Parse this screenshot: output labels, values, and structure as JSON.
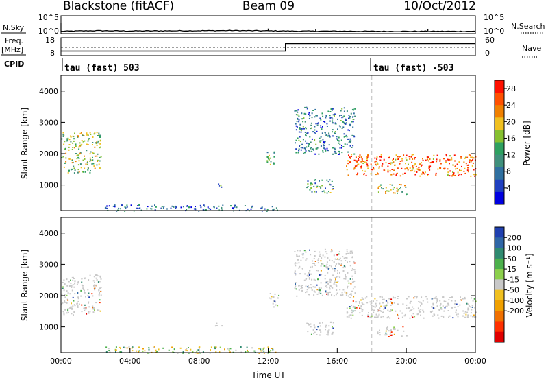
{
  "header": {
    "station": "Blackstone (fitACF)",
    "beam": "Beam 09",
    "date": "10/Oct/2012"
  },
  "side_labels": {
    "nsky": "N.Sky",
    "freq": "Freq.",
    "freq_unit": "[MHz]",
    "cpid": "CPID",
    "nsearch": "N.Search",
    "nave": "Nave"
  },
  "cpid_labels": [
    "tau (fast) 503",
    "tau (fast) -503"
  ],
  "colors": {
    "axis": "#000000",
    "divider": "#bbbbbb",
    "ground_scatter": "#c8c8c8"
  },
  "chart_data": [
    {
      "type": "line",
      "name": "noise",
      "left_ticks": [
        "10^5",
        "10^0"
      ],
      "right_ticks": [
        "10^5",
        "10^0"
      ],
      "x": [
        "00:00",
        "02:00",
        "04:00",
        "06:00",
        "08:00",
        "10:00",
        "12:00",
        "14:00",
        "16:00",
        "18:00",
        "20:00",
        "22:00",
        "24:00"
      ],
      "sky_log10": [
        0.3,
        0.5,
        0.4,
        0.45,
        0.5,
        0.55,
        0.45,
        0.35,
        0.35,
        0.3,
        0.3,
        0.3,
        0.3
      ],
      "spikes": [
        {
          "t": "12:00",
          "log10": 1.2
        },
        {
          "t": "14:45",
          "log10": 0.9
        },
        {
          "t": "21:15",
          "log10": 1.0
        }
      ]
    },
    {
      "type": "line",
      "name": "frequency",
      "left_ticks": [
        "18",
        "8"
      ],
      "right_ticks": [
        "60",
        "0"
      ],
      "freq_series": [
        {
          "t": "00:00",
          "MHz": 10.5
        },
        {
          "t": "13:00",
          "MHz": 10.5
        },
        {
          "t": "13:00",
          "MHz": 15.5
        },
        {
          "t": "24:00",
          "MHz": 15.5
        }
      ],
      "nave_series": [
        {
          "t": "00:00",
          "value": 30
        },
        {
          "t": "24:00",
          "value": 30
        }
      ]
    },
    {
      "type": "heatmap",
      "name": "power",
      "xlabel": "",
      "ylabel": "Slant Range [km]",
      "ylim": [
        180,
        4500
      ],
      "yticks": [
        1000,
        2000,
        3000,
        4000
      ],
      "colorbar": {
        "label": "Power [dB]",
        "ticks": [
          4,
          8,
          12,
          16,
          20,
          24,
          28
        ],
        "range": [
          0,
          30
        ],
        "colors": [
          "#0000e0",
          "#2040c0",
          "#3070a0",
          "#40907c",
          "#2ea060",
          "#86c030",
          "#f0c020",
          "#f08000",
          "#ff5000",
          "#ff1000"
        ]
      },
      "regions": [
        {
          "x0": 0.0,
          "x1": 2.3,
          "r0": 1400,
          "r1": 2700,
          "level": 0.55
        },
        {
          "x0": 8.9,
          "x1": 9.3,
          "r0": 950,
          "r1": 1150,
          "level": 0.35
        },
        {
          "x0": 11.9,
          "x1": 12.6,
          "r0": 1650,
          "r1": 2100,
          "level": 0.45
        },
        {
          "x0": 13.5,
          "x1": 17.0,
          "r0": 2000,
          "r1": 3500,
          "level": 0.3
        },
        {
          "x0": 14.2,
          "x1": 15.8,
          "r0": 750,
          "r1": 1200,
          "level": 0.4
        },
        {
          "x0": 16.5,
          "x1": 24.0,
          "r0": 1300,
          "r1": 2000,
          "level": 0.8
        },
        {
          "x0": 18.3,
          "x1": 20.0,
          "r0": 700,
          "r1": 1050,
          "level": 0.55
        },
        {
          "x0": 2.5,
          "x1": 12.5,
          "r0": 180,
          "r1": 380,
          "level": 0.25
        }
      ]
    },
    {
      "type": "heatmap",
      "name": "velocity",
      "xlabel": "Time UT",
      "ylabel": "Slant Range [km]",
      "ylim": [
        180,
        4500
      ],
      "yticks": [
        1000,
        2000,
        3000,
        4000
      ],
      "xticks": [
        "00:00",
        "04:00",
        "08:00",
        "12:00",
        "16:00",
        "20:00",
        "00:00"
      ],
      "colorbar": {
        "label": "Velocity [m s⁻¹]",
        "ticks": [
          "200",
          "100",
          "50",
          "15",
          "-15",
          "-50",
          "-100",
          "-200"
        ],
        "colors": [
          "#2040b0",
          "#2f66a6",
          "#2f8a70",
          "#4cb04c",
          "#8cd04c",
          "#c8c8c8",
          "#f0c020",
          "#f0a000",
          "#f07000",
          "#ff3000",
          "#e00000"
        ]
      },
      "regions": [
        {
          "x0": 0.0,
          "x1": 2.3,
          "r0": 1400,
          "r1": 2700,
          "kind": "ground"
        },
        {
          "x0": 8.9,
          "x1": 9.3,
          "r0": 950,
          "r1": 1150,
          "kind": "ground"
        },
        {
          "x0": 11.9,
          "x1": 12.6,
          "r0": 1650,
          "r1": 2100,
          "kind": "ground"
        },
        {
          "x0": 13.5,
          "x1": 17.0,
          "r0": 2000,
          "r1": 3500,
          "kind": "ground"
        },
        {
          "x0": 14.2,
          "x1": 15.8,
          "r0": 750,
          "r1": 1200,
          "kind": "ground"
        },
        {
          "x0": 16.5,
          "x1": 24.0,
          "r0": 1300,
          "r1": 2000,
          "kind": "ground"
        },
        {
          "x0": 18.3,
          "x1": 20.0,
          "r0": 700,
          "r1": 1050,
          "kind": "ground"
        },
        {
          "x0": 2.5,
          "x1": 12.5,
          "r0": 180,
          "r1": 380,
          "kind": "ionospheric"
        }
      ]
    }
  ]
}
